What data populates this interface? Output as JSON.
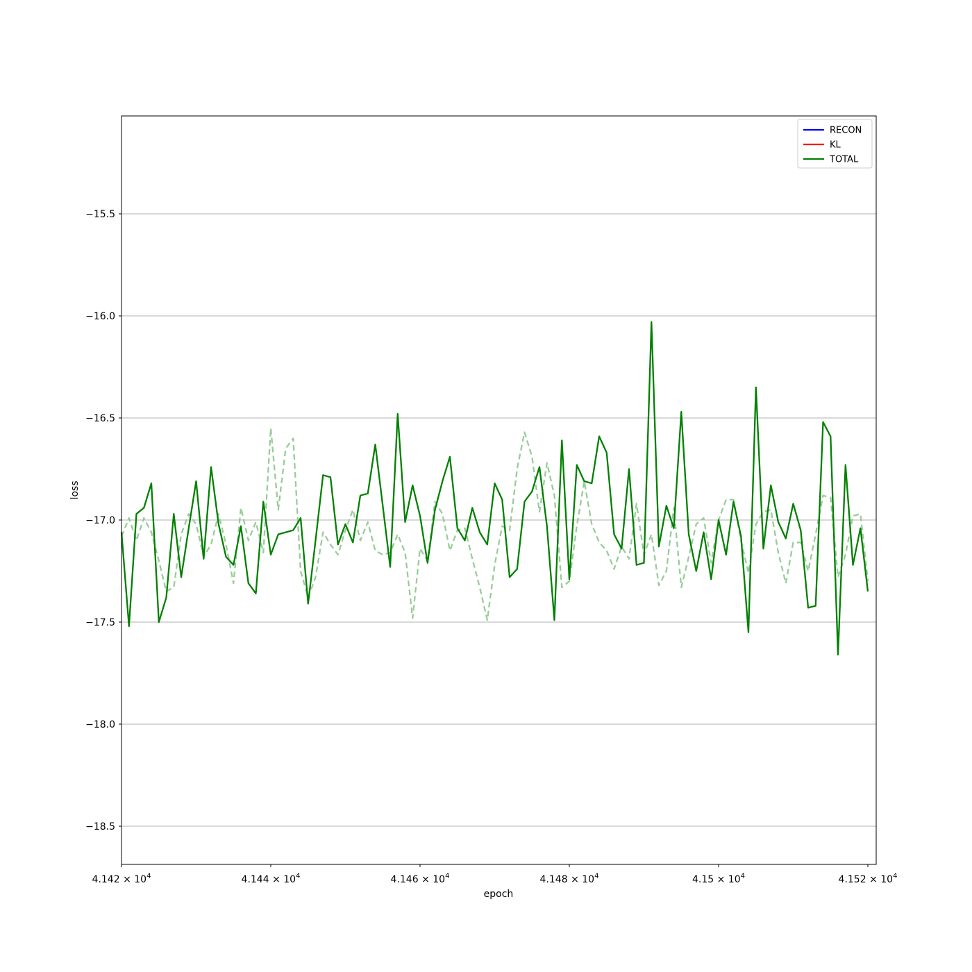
{
  "figure": {
    "background": "#ffffff"
  },
  "chart_data": {
    "type": "line",
    "title": "",
    "xlabel": "epoch",
    "ylabel": "loss",
    "grid": "horizontal",
    "grid_color": "#b0b0b0",
    "axes_color": "#000000",
    "xlim": [
      41420,
      41521
    ],
    "ylim": [
      -18.69,
      -15.02
    ],
    "xticks": [
      {
        "value": 41420,
        "base": "4.142 × 10",
        "exp": "4"
      },
      {
        "value": 41440,
        "base": "4.144 × 10",
        "exp": "4"
      },
      {
        "value": 41460,
        "base": "4.146 × 10",
        "exp": "4"
      },
      {
        "value": 41480,
        "base": "4.148 × 10",
        "exp": "4"
      },
      {
        "value": 41500,
        "base": "4.15 × 10",
        "exp": "4"
      },
      {
        "value": 41520,
        "base": "4.152 × 10",
        "exp": "4"
      }
    ],
    "yticks": [
      {
        "value": -15.5,
        "label": "−15.5"
      },
      {
        "value": -16.0,
        "label": "−16.0"
      },
      {
        "value": -16.5,
        "label": "−16.5"
      },
      {
        "value": -17.0,
        "label": "−17.0"
      },
      {
        "value": -17.5,
        "label": "−17.5"
      },
      {
        "value": -18.0,
        "label": "−18.0"
      },
      {
        "value": -18.5,
        "label": "−18.5"
      }
    ],
    "x": [
      41420,
      41421,
      41422,
      41423,
      41424,
      41425,
      41426,
      41427,
      41428,
      41429,
      41430,
      41431,
      41432,
      41433,
      41434,
      41435,
      41436,
      41437,
      41438,
      41439,
      41440,
      41441,
      41442,
      41443,
      41444,
      41445,
      41446,
      41447,
      41448,
      41449,
      41450,
      41451,
      41452,
      41453,
      41454,
      41455,
      41456,
      41457,
      41458,
      41459,
      41460,
      41461,
      41462,
      41463,
      41464,
      41465,
      41466,
      41467,
      41468,
      41469,
      41470,
      41471,
      41472,
      41473,
      41474,
      41475,
      41476,
      41477,
      41478,
      41479,
      41480,
      41481,
      41482,
      41483,
      41484,
      41485,
      41486,
      41487,
      41488,
      41489,
      41490,
      41491,
      41492,
      41493,
      41494,
      41495,
      41496,
      41497,
      41498,
      41499,
      41500,
      41501,
      41502,
      41503,
      41504,
      41505,
      41506,
      41507,
      41508,
      41509,
      41510,
      41511,
      41512,
      41513,
      41514,
      41515,
      41516,
      41517,
      41518,
      41519,
      41520
    ],
    "series": [
      {
        "name": "TOTAL",
        "line_style": "solid",
        "color": "#008000",
        "in_legend": true,
        "values": [
          -17.06,
          -17.52,
          -16.97,
          -16.94,
          -16.82,
          -17.5,
          -17.38,
          -16.97,
          -17.28,
          -17.04,
          -16.81,
          -17.19,
          -16.74,
          -17.02,
          -17.18,
          -17.22,
          -17.03,
          -17.31,
          -17.36,
          -16.91,
          -17.17,
          -17.07,
          -17.06,
          -17.05,
          -16.99,
          -17.41,
          -17.1,
          -16.78,
          -16.79,
          -17.12,
          -17.02,
          -17.11,
          -16.88,
          -16.87,
          -16.63,
          -16.93,
          -17.23,
          -16.48,
          -17.01,
          -16.83,
          -16.98,
          -17.21,
          -16.95,
          -16.81,
          -16.69,
          -17.04,
          -17.1,
          -16.94,
          -17.06,
          -17.12,
          -16.82,
          -16.9,
          -17.28,
          -17.24,
          -16.91,
          -16.86,
          -16.74,
          -17.03,
          -17.49,
          -16.61,
          -17.29,
          -16.73,
          -16.81,
          -16.82,
          -16.59,
          -16.67,
          -17.07,
          -17.14,
          -16.75,
          -17.22,
          -17.21,
          -16.03,
          -17.13,
          -16.93,
          -17.04,
          -16.47,
          -17.07,
          -17.25,
          -17.06,
          -17.29,
          -17.0,
          -17.17,
          -16.91,
          -17.08,
          -17.55,
          -16.35,
          -17.14,
          -16.83,
          -17.01,
          -17.09,
          -16.92,
          -17.05,
          -17.43,
          -17.42,
          -16.52,
          -16.59,
          -17.66,
          -16.73,
          -17.22,
          -17.04,
          -17.35
        ]
      },
      {
        "name": "TOTAL (raw)",
        "line_style": "dashed",
        "color": "#99cc99",
        "in_legend": false,
        "values": [
          -17.08,
          -16.99,
          -17.1,
          -16.99,
          -17.06,
          -17.2,
          -17.35,
          -17.33,
          -17.07,
          -16.97,
          -17.02,
          -17.18,
          -17.12,
          -16.97,
          -17.12,
          -17.31,
          -16.94,
          -17.1,
          -17.01,
          -17.16,
          -16.55,
          -16.95,
          -16.65,
          -16.6,
          -17.25,
          -17.38,
          -17.28,
          -17.06,
          -17.12,
          -17.17,
          -17.05,
          -16.95,
          -17.1,
          -17.01,
          -17.15,
          -17.17,
          -17.16,
          -17.07,
          -17.16,
          -17.48,
          -17.14,
          -17.2,
          -16.91,
          -16.97,
          -17.15,
          -17.05,
          -17.04,
          -17.19,
          -17.33,
          -17.49,
          -17.22,
          -17.03,
          -17.05,
          -16.75,
          -16.57,
          -16.69,
          -16.96,
          -16.72,
          -16.88,
          -17.33,
          -17.3,
          -17.03,
          -16.81,
          -17.02,
          -17.11,
          -17.15,
          -17.24,
          -17.13,
          -17.19,
          -16.92,
          -17.17,
          -17.07,
          -17.32,
          -17.25,
          -16.94,
          -17.33,
          -17.18,
          -17.02,
          -16.99,
          -17.21,
          -17.0,
          -16.9,
          -16.9,
          -17.1,
          -17.26,
          -17.02,
          -16.96,
          -16.95,
          -17.16,
          -17.31,
          -17.11,
          -17.11,
          -17.25,
          -17.07,
          -16.88,
          -16.89,
          -17.28,
          -17.17,
          -16.98,
          -16.97,
          -17.3
        ]
      }
    ],
    "legend": {
      "position": "upper right",
      "entries": [
        {
          "label": "RECON",
          "color": "#0000ff"
        },
        {
          "label": "KL",
          "color": "#ff0000"
        },
        {
          "label": "TOTAL",
          "color": "#008000"
        }
      ]
    }
  }
}
